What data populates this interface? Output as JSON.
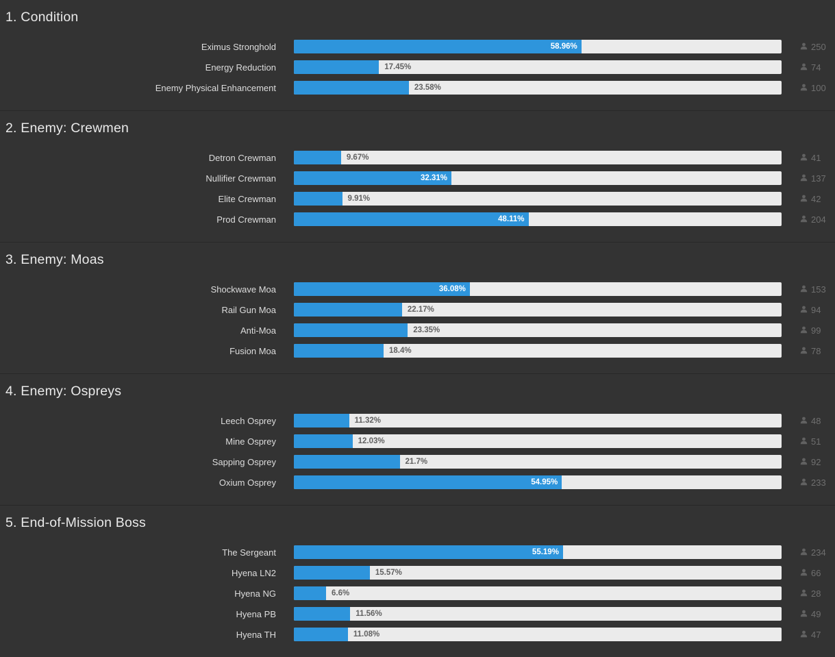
{
  "theme": {
    "background": "#333333",
    "bar_fill": "#2e95dc",
    "bar_track": "#ebebeb",
    "divider": "#282828",
    "heading_color": "#e9e9e9",
    "label_color": "#dcdcdc",
    "pct_inside_color": "#ffffff",
    "pct_outside_color": "#616161",
    "count_color": "#6f6f6f",
    "count_icon": "person-icon"
  },
  "chart_data": [
    {
      "type": "bar",
      "orientation": "horizontal",
      "title": "1. Condition",
      "xlim": [
        0,
        100
      ],
      "categories": [
        "Eximus Stronghold",
        "Energy Reduction",
        "Enemy Physical Enhancement"
      ],
      "values": [
        58.96,
        17.45,
        23.58
      ],
      "value_labels": [
        "58.96%",
        "17.45%",
        "23.58%"
      ],
      "counts": [
        250,
        74,
        100
      ]
    },
    {
      "type": "bar",
      "orientation": "horizontal",
      "title": "2. Enemy: Crewmen",
      "xlim": [
        0,
        100
      ],
      "categories": [
        "Detron Crewman",
        "Nullifier Crewman",
        "Elite Crewman",
        "Prod Crewman"
      ],
      "values": [
        9.67,
        32.31,
        9.91,
        48.11
      ],
      "value_labels": [
        "9.67%",
        "32.31%",
        "9.91%",
        "48.11%"
      ],
      "counts": [
        41,
        137,
        42,
        204
      ]
    },
    {
      "type": "bar",
      "orientation": "horizontal",
      "title": "3. Enemy: Moas",
      "xlim": [
        0,
        100
      ],
      "categories": [
        "Shockwave Moa",
        "Rail Gun Moa",
        "Anti-Moa",
        "Fusion Moa"
      ],
      "values": [
        36.08,
        22.17,
        23.35,
        18.4
      ],
      "value_labels": [
        "36.08%",
        "22.17%",
        "23.35%",
        "18.4%"
      ],
      "counts": [
        153,
        94,
        99,
        78
      ]
    },
    {
      "type": "bar",
      "orientation": "horizontal",
      "title": "4. Enemy: Ospreys",
      "xlim": [
        0,
        100
      ],
      "categories": [
        "Leech Osprey",
        "Mine Osprey",
        "Sapping Osprey",
        "Oxium Osprey"
      ],
      "values": [
        11.32,
        12.03,
        21.7,
        54.95
      ],
      "value_labels": [
        "11.32%",
        "12.03%",
        "21.7%",
        "54.95%"
      ],
      "counts": [
        48,
        51,
        92,
        233
      ]
    },
    {
      "type": "bar",
      "orientation": "horizontal",
      "title": "5. End-of-Mission Boss",
      "xlim": [
        0,
        100
      ],
      "categories": [
        "The Sergeant",
        "Hyena LN2",
        "Hyena NG",
        "Hyena PB",
        "Hyena TH"
      ],
      "values": [
        55.19,
        15.57,
        6.6,
        11.56,
        11.08
      ],
      "value_labels": [
        "55.19%",
        "15.57%",
        "6.6%",
        "11.56%",
        "11.08%"
      ],
      "counts": [
        234,
        66,
        28,
        49,
        47
      ]
    }
  ]
}
